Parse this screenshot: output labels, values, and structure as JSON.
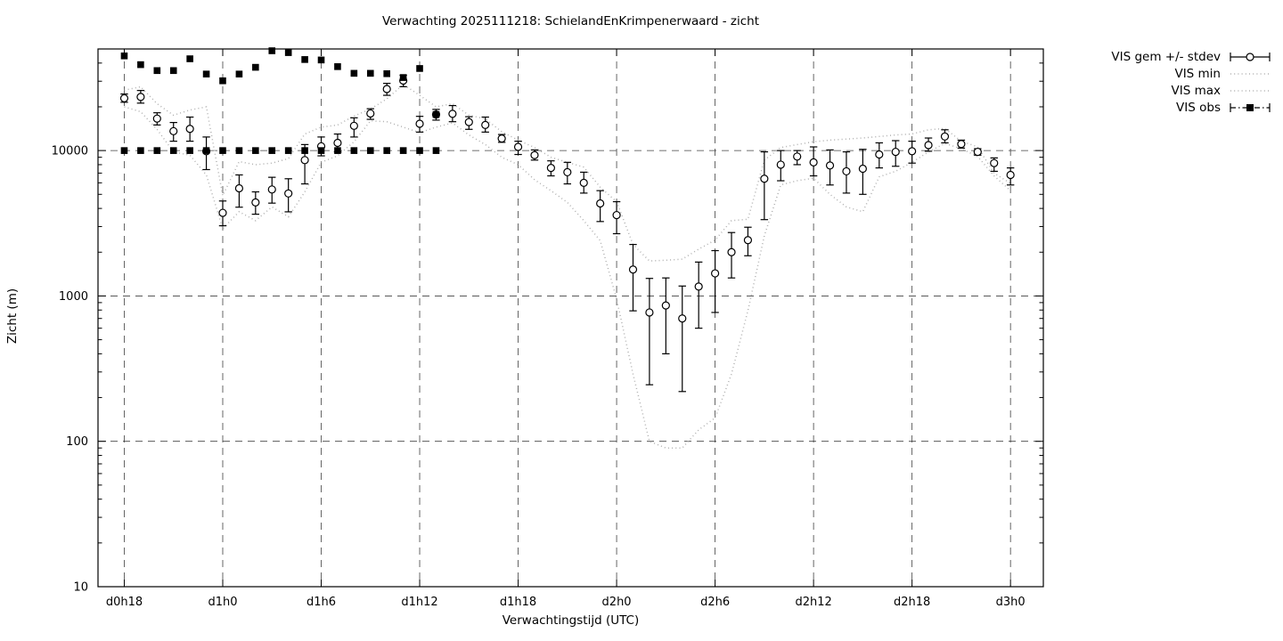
{
  "chart_data": {
    "type": "scatter",
    "title": "Verwachting 2025111218: SchielandEnKrimpenerwaard - zicht",
    "xlabel": "Verwachtingstijd (UTC)",
    "ylabel": "Zicht (m)",
    "y_scale": "log",
    "ylim": [
      10,
      50000
    ],
    "xlim_hours": [
      -1.6,
      56.0
    ],
    "grid": true,
    "legend_position": "outside-top-right",
    "x_ticks": [
      {
        "h": 0,
        "label": "d0h18"
      },
      {
        "h": 6,
        "label": "d1h0"
      },
      {
        "h": 12,
        "label": "d1h6"
      },
      {
        "h": 18,
        "label": "d1h12"
      },
      {
        "h": 24,
        "label": "d1h18"
      },
      {
        "h": 30,
        "label": "d2h0"
      },
      {
        "h": 36,
        "label": "d2h6"
      },
      {
        "h": 42,
        "label": "d2h12"
      },
      {
        "h": 48,
        "label": "d2h18"
      },
      {
        "h": 54,
        "label": "d3h0"
      }
    ],
    "y_ticks": [
      {
        "v": 10,
        "label": "10"
      },
      {
        "v": 100,
        "label": "100"
      },
      {
        "v": 1000,
        "label": "1000"
      },
      {
        "v": 10000,
        "label": "10000"
      }
    ],
    "hours_note": "hour index 0 = d0h18, hourly steps through 54 = d3h0",
    "series": [
      {
        "name": "VIS gem +/- stdev",
        "style": "errorbar-open-circle",
        "color": "#000000",
        "values": [
          22900,
          23400,
          16600,
          13600,
          14100,
          9900,
          3730,
          5500,
          4400,
          5400,
          5070,
          8600,
          10700,
          11300,
          14800,
          18000,
          26500,
          30300,
          15300,
          17700,
          17900,
          15700,
          15000,
          12100,
          10600,
          9300,
          7600,
          7100,
          6000,
          4330,
          3600,
          1520,
          770,
          860,
          700,
          1160,
          1430,
          2000,
          2420,
          6400,
          8000,
          9100,
          8300,
          7900,
          7200,
          7500,
          9400,
          9800,
          9900,
          10900,
          12500,
          11100,
          9800,
          8200,
          6800
        ],
        "err_lo": [
          21500,
          21200,
          15000,
          11600,
          11600,
          7400,
          3040,
          4080,
          3650,
          4350,
          3790,
          5900,
          9200,
          9800,
          12400,
          16400,
          24000,
          27500,
          13400,
          16200,
          15800,
          14000,
          13400,
          11400,
          9400,
          8600,
          6700,
          5900,
          5100,
          3250,
          2680,
          790,
          245,
          400,
          220,
          600,
          770,
          1330,
          1890,
          3350,
          6200,
          8000,
          6700,
          5800,
          5100,
          5000,
          7600,
          7800,
          8200,
          9900,
          11300,
          10400,
          9300,
          7200,
          5800
        ],
        "err_hi": [
          24500,
          25900,
          18200,
          15600,
          17000,
          12400,
          4500,
          6800,
          5200,
          6550,
          6400,
          11000,
          12400,
          13000,
          16800,
          19400,
          29000,
          33000,
          17200,
          19200,
          20400,
          17100,
          17000,
          12900,
          11600,
          10100,
          8500,
          8300,
          7100,
          5300,
          4450,
          2260,
          1320,
          1330,
          1170,
          1710,
          2050,
          2730,
          2970,
          9800,
          10000,
          10000,
          10600,
          10100,
          9800,
          10200,
          11300,
          11700,
          11600,
          12200,
          13900,
          11800,
          10300,
          8900,
          7600
        ]
      },
      {
        "name": "VIS min",
        "style": "dotted-line",
        "color": "#b0b0b0",
        "values": [
          20000,
          18500,
          14000,
          9800,
          9300,
          6800,
          2900,
          3800,
          3300,
          4100,
          3500,
          5200,
          8300,
          9200,
          11500,
          16000,
          15800,
          14500,
          13300,
          14500,
          15500,
          12800,
          11000,
          9000,
          8000,
          6300,
          5300,
          4400,
          3300,
          2400,
          950,
          290,
          100,
          90,
          90,
          120,
          145,
          290,
          790,
          2600,
          5800,
          6200,
          6450,
          5000,
          4100,
          3800,
          6600,
          7200,
          8300,
          9800,
          11200,
          10300,
          9100,
          6700,
          5300
        ]
      },
      {
        "name": "VIS max",
        "style": "dotted-line",
        "color": "#b0b0b0",
        "values": [
          26000,
          27500,
          21000,
          17500,
          19000,
          20000,
          4900,
          8400,
          8000,
          8200,
          8800,
          13000,
          14500,
          15000,
          17300,
          19300,
          22700,
          28500,
          24000,
          20000,
          21000,
          17500,
          16500,
          13500,
          11800,
          10500,
          9000,
          8300,
          7700,
          5600,
          4450,
          2260,
          1740,
          1760,
          1790,
          2100,
          2420,
          3300,
          3370,
          8600,
          10500,
          11000,
          11500,
          11800,
          12000,
          12200,
          12500,
          12800,
          13000,
          13900,
          14200,
          11600,
          10600,
          7000,
          5950
        ]
      },
      {
        "name": "VIS obs",
        "style": "filled-square",
        "color": "#000000",
        "points": [
          [
            0,
            44800
          ],
          [
            1,
            39000
          ],
          [
            2,
            35500
          ],
          [
            3,
            35500
          ],
          [
            4,
            42800
          ],
          [
            5,
            33600
          ],
          [
            6,
            30200
          ],
          [
            7,
            33600
          ],
          [
            8,
            37400
          ],
          [
            9,
            48600
          ],
          [
            10,
            47200
          ],
          [
            11,
            42300
          ],
          [
            12,
            42000
          ],
          [
            13,
            37800
          ],
          [
            14,
            34000
          ],
          [
            15,
            34000
          ],
          [
            16,
            33800
          ],
          [
            17,
            31800
          ],
          [
            18,
            36700
          ],
          [
            19,
            17700
          ],
          [
            0,
            10000
          ],
          [
            1,
            10000
          ],
          [
            2,
            10000
          ],
          [
            3,
            10000
          ],
          [
            4,
            10000
          ],
          [
            5,
            10000
          ],
          [
            6,
            10000
          ],
          [
            7,
            10000
          ],
          [
            8,
            10000
          ],
          [
            9,
            10000
          ],
          [
            10,
            10000
          ],
          [
            11,
            10000
          ],
          [
            12,
            10000
          ],
          [
            13,
            10000
          ],
          [
            14,
            10000
          ],
          [
            15,
            10000
          ],
          [
            16,
            10000
          ],
          [
            17,
            10000
          ],
          [
            18,
            10000
          ],
          [
            19,
            10000
          ]
        ]
      }
    ]
  }
}
